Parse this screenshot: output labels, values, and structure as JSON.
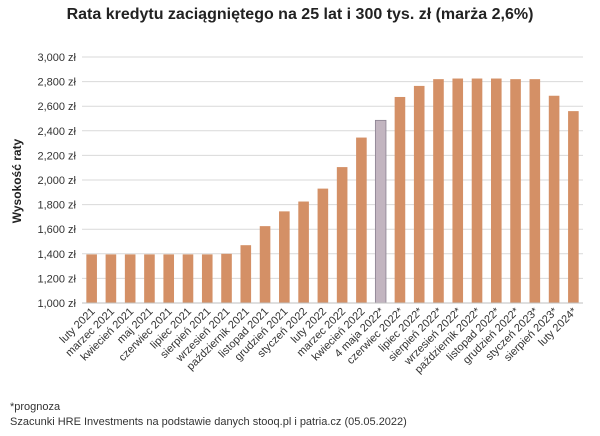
{
  "chart_data": {
    "type": "bar",
    "title": "Rata kredytu zaciągniętego na 25 lat i 300 tys. zł (marża 2,6%)",
    "xlabel": "",
    "ylabel": "Wysokość raty",
    "ylim": [
      1000,
      3000
    ],
    "yticks": [
      "1,000 zł",
      "1,200 zł",
      "1,400 zł",
      "1,600 zł",
      "1,800 zł",
      "2,000 zł",
      "2,200 zł",
      "2,400 zł",
      "2,600 zł",
      "2,800 zł",
      "3,000 zł"
    ],
    "grid": true,
    "categories": [
      "luty 2021",
      "marzec 2021",
      "kwiecień 2021",
      "maj 2021",
      "czerwiec 2021",
      "lipiec 2021",
      "sierpień 2021",
      "wrzesień 2021",
      "październik 2021",
      "listopad 2021",
      "grudzień 2021",
      "styczeń 2022",
      "luty 2022",
      "marzec 2022",
      "kwiecień 2022",
      "4 maja 2022*",
      "czerwiec 2022*",
      "lipiec 2022*",
      "sierpień 2022*",
      "wrzesień 2022*",
      "październik 2022*",
      "listopad 2022*",
      "grudzień 2022*",
      "styczeń 2023*",
      "sierpień 2023*",
      "luty 2024*"
    ],
    "values": [
      1395,
      1395,
      1395,
      1395,
      1395,
      1395,
      1395,
      1400,
      1470,
      1625,
      1745,
      1825,
      1930,
      2105,
      2345,
      2485,
      2675,
      2765,
      2820,
      2825,
      2825,
      2825,
      2820,
      2820,
      2685,
      2560
    ],
    "colors": {
      "bar": "#d49066",
      "highlight": "#c2b5c0",
      "highlight_edge": "#8a8090",
      "grid": "#d9d9d9"
    },
    "highlight_index": 15
  },
  "notes": {
    "forecast": "*prognoza",
    "source": "Szacunki HRE Investments na podstawie danych stooq.pl i patria.cz (05.05.2022)"
  }
}
